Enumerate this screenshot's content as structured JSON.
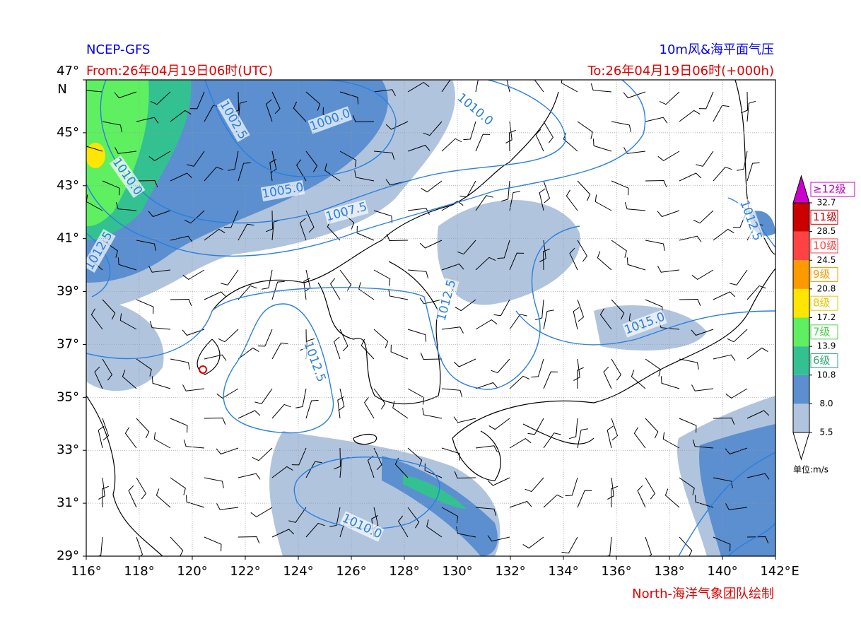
{
  "header": {
    "model": "NCEP-GFS",
    "title": "10m风&海平面气压",
    "from": "From:26年04月19日06时(UTC)",
    "to": "To:26年04月19日06时(+000h)"
  },
  "footer": "North-海洋气象团队绘制",
  "map": {
    "xlim": [
      116,
      142
    ],
    "ylim": [
      29,
      47
    ],
    "xticks": [
      {
        "value": 116,
        "label": "116°"
      },
      {
        "value": 118,
        "label": "118°"
      },
      {
        "value": 120,
        "label": "120°"
      },
      {
        "value": 122,
        "label": "122°"
      },
      {
        "value": 124,
        "label": "124°"
      },
      {
        "value": 126,
        "label": "126°"
      },
      {
        "value": 128,
        "label": "128°"
      },
      {
        "value": 130,
        "label": "130°"
      },
      {
        "value": 132,
        "label": "132°"
      },
      {
        "value": 134,
        "label": "134°"
      },
      {
        "value": 136,
        "label": "136°"
      },
      {
        "value": 138,
        "label": "138°"
      },
      {
        "value": 140,
        "label": "140°"
      },
      {
        "value": 142,
        "label": "142°"
      }
    ],
    "yticks": [
      {
        "value": 29,
        "label": "29°"
      },
      {
        "value": 31,
        "label": "31°"
      },
      {
        "value": 33,
        "label": "33°"
      },
      {
        "value": 35,
        "label": "35°"
      },
      {
        "value": 37,
        "label": "37°"
      },
      {
        "value": 39,
        "label": "39°"
      },
      {
        "value": 41,
        "label": "41°"
      },
      {
        "value": 43,
        "label": "43°"
      },
      {
        "value": 45,
        "label": "45°"
      },
      {
        "value": 47,
        "label": "47°"
      }
    ],
    "x_unit": "E",
    "y_unit": "N",
    "isobar_labels": [
      "1002.5",
      "1000.0",
      "1010.0",
      "1010.0",
      "1005.0",
      "1007.5",
      "1012.5",
      "1012.5",
      "1015.0",
      "1012.5",
      "1010.0",
      "1012.5"
    ]
  },
  "colorbar": {
    "levels": [
      5.5,
      {
        "value": 8,
        "label": "8.0"
      },
      10.8,
      13.9,
      17.2,
      20.8,
      24.5,
      28.5,
      32.7
    ],
    "colors": [
      "#b0c4de",
      "#5b8fd0",
      "#33c191",
      "#5ef060",
      "#ffe600",
      "#ff9900",
      "#ff4343",
      "#cc0000"
    ],
    "over_color": "#cc00cc",
    "classes": [
      {
        "label": "6级",
        "color": "#33a97a"
      },
      {
        "label": "7级",
        "color": "#4cd14c"
      },
      {
        "label": "8级",
        "color": "#e6c800"
      },
      {
        "label": "9级",
        "color": "#ff9900"
      },
      {
        "label": "10级",
        "color": "#ff4343"
      },
      {
        "label": "11级",
        "color": "#cc0000"
      },
      {
        "label": "≥12级",
        "color": "#cc00cc"
      }
    ],
    "unit": "单位:m/s"
  }
}
